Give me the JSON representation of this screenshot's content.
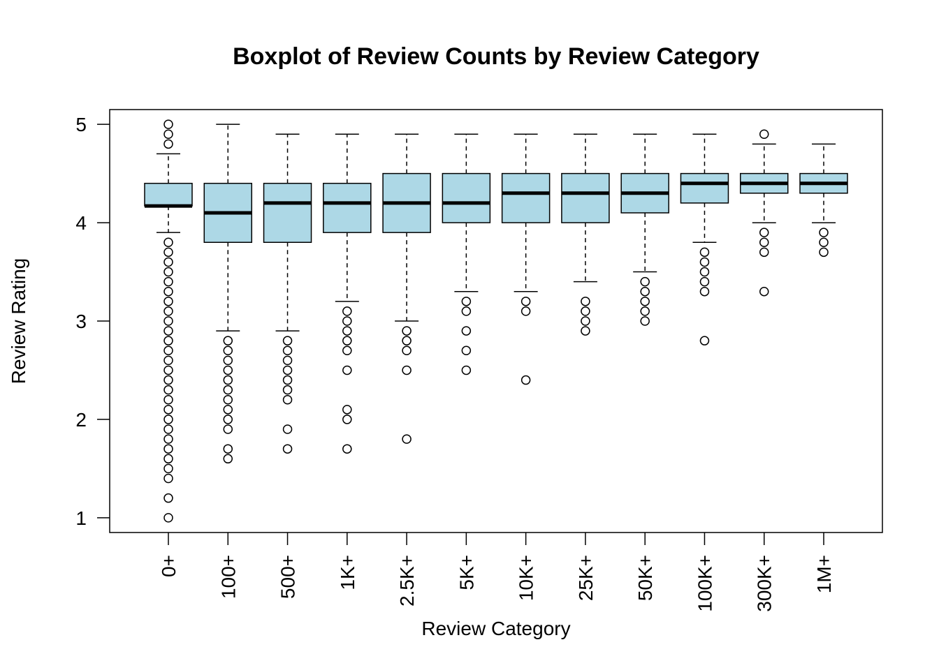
{
  "chart_data": {
    "type": "boxplot",
    "title": "Boxplot of Review Counts by Review Category",
    "xlabel": "Review Category",
    "ylabel": "Review Rating",
    "ylim": [
      0.85,
      5.15
    ],
    "yticks": [
      1,
      2,
      3,
      4,
      5
    ],
    "box_fill": "#add8e6",
    "categories": [
      "0+",
      "100+",
      "500+",
      "1K+",
      "2.5K+",
      "5K+",
      "10K+",
      "25K+",
      "50K+",
      "100K+",
      "300K+",
      "1M+"
    ],
    "boxes": [
      {
        "whisker_low": 3.9,
        "q1": 4.17,
        "median": 4.17,
        "q3": 4.4,
        "whisker_high": 4.7,
        "outliers": [
          5.0,
          4.9,
          4.8,
          3.8,
          3.7,
          3.6,
          3.5,
          3.4,
          3.3,
          3.2,
          3.1,
          3.0,
          2.9,
          2.8,
          2.7,
          2.6,
          2.5,
          2.4,
          2.3,
          2.2,
          2.1,
          2.0,
          1.9,
          1.8,
          1.7,
          1.6,
          1.5,
          1.4,
          1.2,
          1.0
        ]
      },
      {
        "whisker_low": 2.9,
        "q1": 3.8,
        "median": 4.1,
        "q3": 4.4,
        "whisker_high": 5.0,
        "outliers": [
          2.8,
          2.7,
          2.6,
          2.5,
          2.4,
          2.3,
          2.2,
          2.1,
          2.0,
          1.9,
          1.7,
          1.6
        ]
      },
      {
        "whisker_low": 2.9,
        "q1": 3.8,
        "median": 4.2,
        "q3": 4.4,
        "whisker_high": 4.9,
        "outliers": [
          2.8,
          2.7,
          2.6,
          2.5,
          2.4,
          2.3,
          2.2,
          1.9,
          1.7
        ]
      },
      {
        "whisker_low": 3.2,
        "q1": 3.9,
        "median": 4.2,
        "q3": 4.4,
        "whisker_high": 4.9,
        "outliers": [
          3.1,
          3.0,
          2.9,
          2.8,
          2.7,
          2.5,
          2.1,
          2.0,
          1.7
        ]
      },
      {
        "whisker_low": 3.0,
        "q1": 3.9,
        "median": 4.2,
        "q3": 4.5,
        "whisker_high": 4.9,
        "outliers": [
          2.9,
          2.8,
          2.7,
          2.5,
          1.8
        ]
      },
      {
        "whisker_low": 3.3,
        "q1": 4.0,
        "median": 4.2,
        "q3": 4.5,
        "whisker_high": 4.9,
        "outliers": [
          3.2,
          3.1,
          2.9,
          2.7,
          2.5
        ]
      },
      {
        "whisker_low": 3.3,
        "q1": 4.0,
        "median": 4.3,
        "q3": 4.5,
        "whisker_high": 4.9,
        "outliers": [
          3.2,
          3.1,
          2.4
        ]
      },
      {
        "whisker_low": 3.4,
        "q1": 4.0,
        "median": 4.3,
        "q3": 4.5,
        "whisker_high": 4.9,
        "outliers": [
          3.2,
          3.1,
          3.0,
          2.9
        ]
      },
      {
        "whisker_low": 3.5,
        "q1": 4.1,
        "median": 4.3,
        "q3": 4.5,
        "whisker_high": 4.9,
        "outliers": [
          3.4,
          3.3,
          3.2,
          3.1,
          3.0
        ]
      },
      {
        "whisker_low": 3.8,
        "q1": 4.2,
        "median": 4.4,
        "q3": 4.5,
        "whisker_high": 4.9,
        "outliers": [
          3.7,
          3.6,
          3.5,
          3.4,
          3.3,
          2.8
        ]
      },
      {
        "whisker_low": 4.0,
        "q1": 4.3,
        "median": 4.4,
        "q3": 4.5,
        "whisker_high": 4.8,
        "outliers": [
          4.9,
          3.9,
          3.8,
          3.7,
          3.3
        ]
      },
      {
        "whisker_low": 4.0,
        "q1": 4.3,
        "median": 4.4,
        "q3": 4.5,
        "whisker_high": 4.8,
        "outliers": [
          3.9,
          3.8,
          3.7
        ]
      }
    ]
  }
}
